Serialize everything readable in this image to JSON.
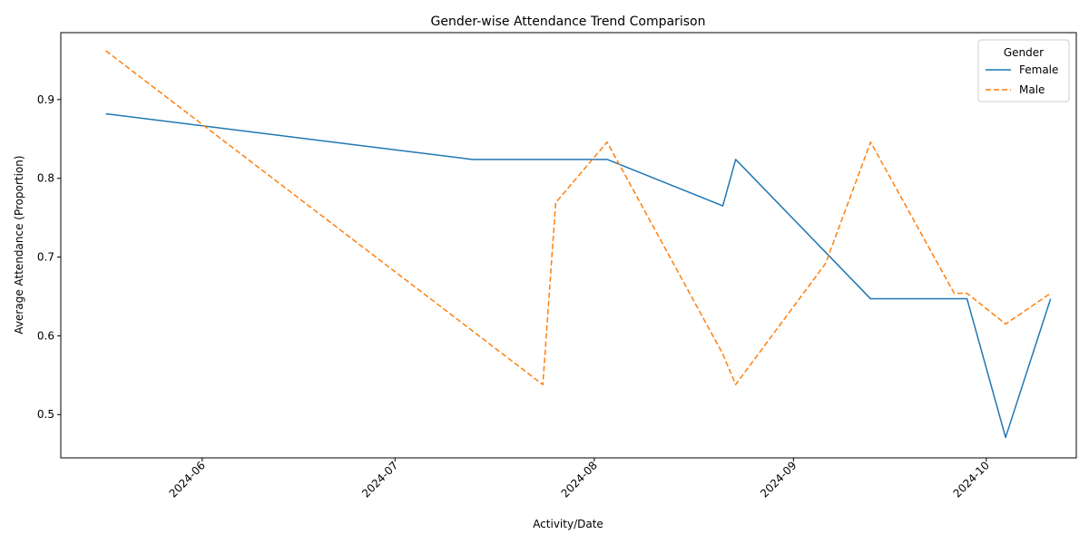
{
  "chart_data": {
    "type": "line",
    "title": "Gender-wise Attendance Trend Comparison",
    "xlabel": "Activity/Date",
    "ylabel": "Average Attendance (Proportion)",
    "x_axis": {
      "type": "date",
      "range": [
        "2024-05-10",
        "2024-10-15"
      ],
      "ticks": [
        "2024-06-01",
        "2024-07-01",
        "2024-08-01",
        "2024-09-01",
        "2024-10-01"
      ],
      "tick_labels": [
        "2024-06",
        "2024-07",
        "2024-08",
        "2024-09",
        "2024-10"
      ]
    },
    "y_axis": {
      "range": [
        0.445,
        0.985
      ],
      "ticks": [
        0.5,
        0.6,
        0.7,
        0.8,
        0.9
      ],
      "tick_labels": [
        "0.5",
        "0.6",
        "0.7",
        "0.8",
        "0.9"
      ]
    },
    "grid": false,
    "legend": {
      "title": "Gender",
      "placement": "top-right"
    },
    "series": [
      {
        "name": "Female",
        "color": "#1f77b4",
        "style": "solid",
        "points": [
          {
            "x": "2024-05-17",
            "y": 0.882
          },
          {
            "x": "2024-07-13",
            "y": 0.824
          },
          {
            "x": "2024-08-03",
            "y": 0.824
          },
          {
            "x": "2024-08-21",
            "y": 0.765
          },
          {
            "x": "2024-08-23",
            "y": 0.824
          },
          {
            "x": "2024-09-06",
            "y": 0.706
          },
          {
            "x": "2024-09-13",
            "y": 0.647
          },
          {
            "x": "2024-09-28",
            "y": 0.647
          },
          {
            "x": "2024-10-04",
            "y": 0.471
          },
          {
            "x": "2024-10-11",
            "y": 0.647
          }
        ]
      },
      {
        "name": "Male",
        "color": "#ff7f0e",
        "style": "dashed",
        "points": [
          {
            "x": "2024-05-17",
            "y": 0.962
          },
          {
            "x": "2024-07-24",
            "y": 0.538
          },
          {
            "x": "2024-07-26",
            "y": 0.769
          },
          {
            "x": "2024-08-03",
            "y": 0.846
          },
          {
            "x": "2024-08-21",
            "y": 0.577
          },
          {
            "x": "2024-08-23",
            "y": 0.538
          },
          {
            "x": "2024-09-06",
            "y": 0.692
          },
          {
            "x": "2024-09-13",
            "y": 0.846
          },
          {
            "x": "2024-09-26",
            "y": 0.654
          },
          {
            "x": "2024-09-28",
            "y": 0.654
          },
          {
            "x": "2024-10-04",
            "y": 0.615
          },
          {
            "x": "2024-10-11",
            "y": 0.654
          }
        ]
      }
    ]
  }
}
